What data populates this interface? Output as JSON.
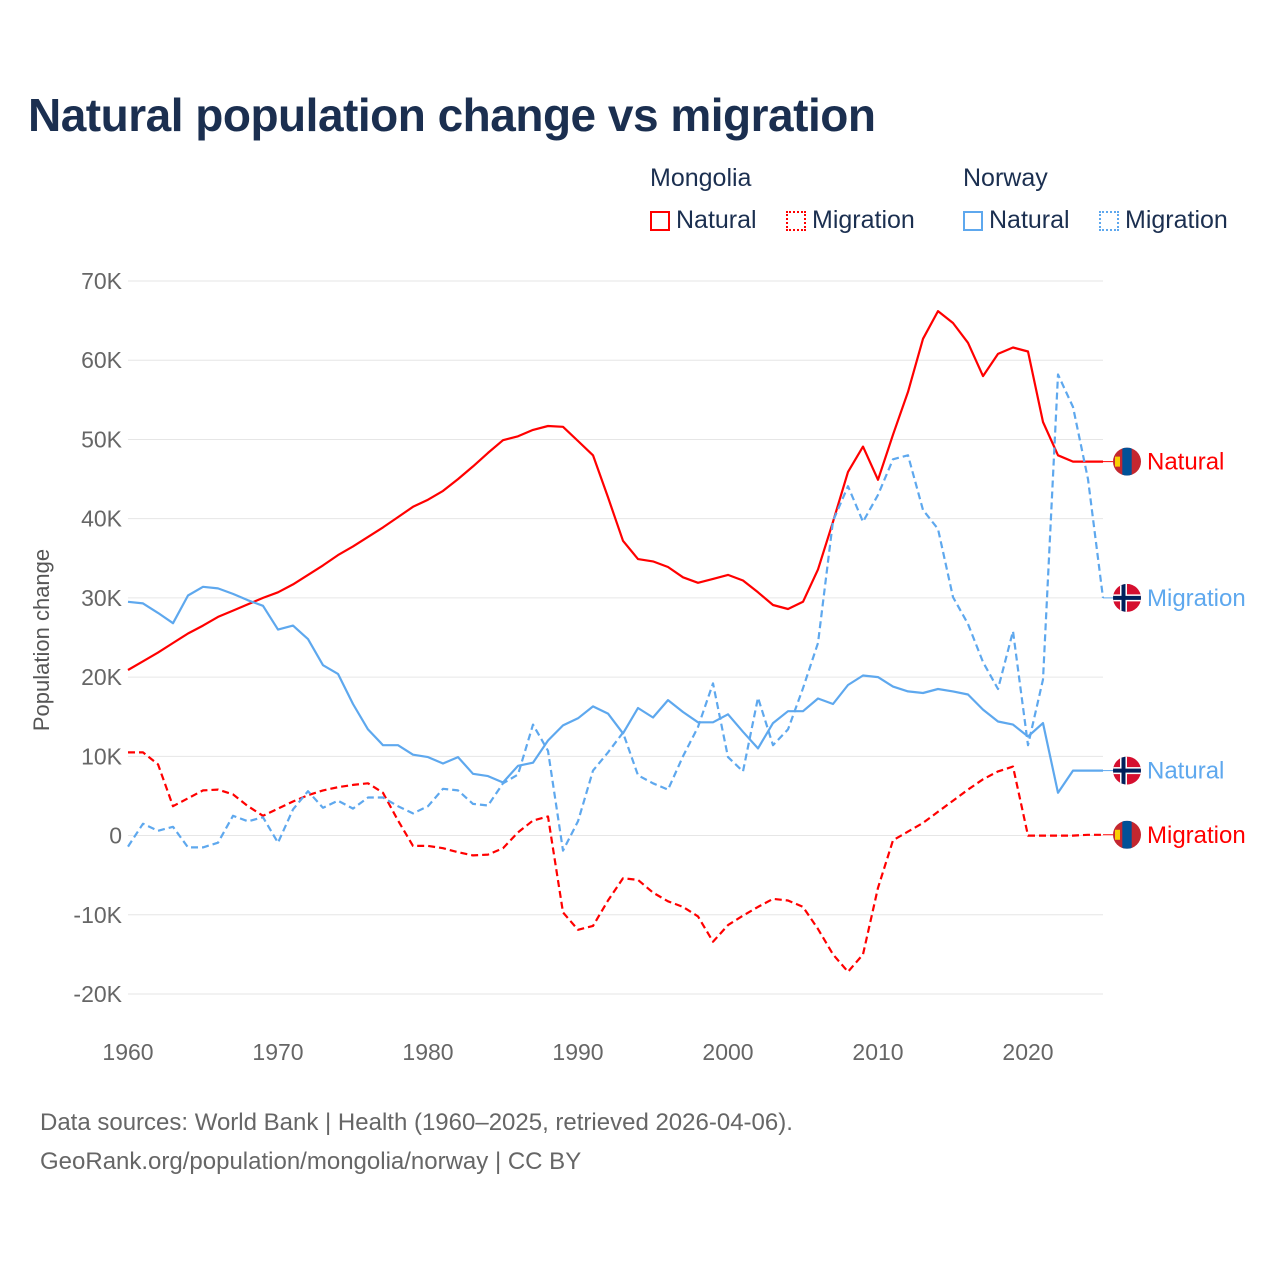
{
  "title": "Natural population change vs migration",
  "legend": {
    "groups": [
      {
        "name": "Mongolia",
        "items": [
          "Natural",
          "Migration"
        ]
      },
      {
        "name": "Norway",
        "items": [
          "Natural",
          "Migration"
        ]
      }
    ]
  },
  "footer": {
    "line1": "Data sources: World Bank | Health (1960–2025, retrieved 2026-04-06).",
    "line2": "GeoRank.org/population/mongolia/norway | CC BY"
  },
  "colors": {
    "mongolia": "#ff0000",
    "norway": "#5ea8ee",
    "grid": "#e6e6e6",
    "tick": "#666666"
  },
  "chart_data": {
    "type": "line",
    "title": "Natural population change vs migration",
    "xlabel": "",
    "ylabel": "Population change",
    "xlim": [
      1960,
      2025
    ],
    "ylim": [
      -20000,
      70000
    ],
    "grid": true,
    "x_ticks": [
      1960,
      1970,
      1980,
      1990,
      2000,
      2010,
      2020
    ],
    "x_tick_labels": [
      "1960",
      "1970",
      "1980",
      "1990",
      "2000",
      "2010",
      "2020"
    ],
    "y_ticks": [
      -20000,
      -10000,
      0,
      10000,
      20000,
      30000,
      40000,
      50000,
      60000,
      70000
    ],
    "y_tick_labels": [
      "-20K",
      "-10K",
      "0",
      "10K",
      "20K",
      "30K",
      "40K",
      "50K",
      "60K",
      "70K"
    ],
    "x_start": 1960,
    "series": [
      {
        "name": "Mongolia Natural",
        "country": "Mongolia",
        "label": "Natural",
        "color": "#ff0000",
        "dash": false,
        "flag": "mongolia-flag",
        "values": [
          20.9,
          22.0,
          23.1,
          24.3,
          25.5,
          26.5,
          27.6,
          28.4,
          29.2,
          30.0,
          30.7,
          31.7,
          32.9,
          34.1,
          35.4,
          36.5,
          37.7,
          38.9,
          40.2,
          41.5,
          42.4,
          43.5,
          45.0,
          46.6,
          48.3,
          49.9,
          50.4,
          51.2,
          51.7,
          51.6,
          49.8,
          48.0,
          42.7,
          37.2,
          34.9,
          34.6,
          33.9,
          32.6,
          31.9,
          32.4,
          32.9,
          32.2,
          30.7,
          29.1,
          28.6,
          29.5,
          33.6,
          39.6,
          45.9,
          49.1,
          44.9,
          50.6,
          56.0,
          62.7,
          66.2,
          64.7,
          62.2,
          58.0,
          60.8,
          61.6,
          61.1,
          52.2,
          48.0,
          47.2,
          47.2,
          47.2
        ]
      },
      {
        "name": "Mongolia Migration",
        "country": "Mongolia",
        "label": "Migration",
        "color": "#ff0000",
        "dash": true,
        "flag": "mongolia-flag",
        "values": [
          10.5,
          10.5,
          9.0,
          3.7,
          4.7,
          5.7,
          5.8,
          5.2,
          3.7,
          2.5,
          3.4,
          4.3,
          5.1,
          5.7,
          6.1,
          6.4,
          6.6,
          5.4,
          1.9,
          -1.3,
          -1.3,
          -1.6,
          -2.1,
          -2.5,
          -2.4,
          -1.6,
          0.4,
          1.9,
          2.4,
          -9.7,
          -11.9,
          -11.4,
          -8.2,
          -5.4,
          -5.6,
          -7.2,
          -8.3,
          -9.0,
          -10.2,
          -13.4,
          -11.3,
          -10.1,
          -9.0,
          -8.0,
          -8.2,
          -9.0,
          -11.8,
          -15.0,
          -17.2,
          -15.0,
          -6.6,
          -0.6,
          0.5,
          1.6,
          3.0,
          4.4,
          5.8,
          7.1,
          8.1,
          8.7,
          0,
          0,
          0,
          0,
          0.1,
          0.1
        ]
      },
      {
        "name": "Norway Natural",
        "country": "Norway",
        "label": "Natural",
        "color": "#5ea8ee",
        "dash": false,
        "flag": "norway-flag",
        "values": [
          29.5,
          29.3,
          28.1,
          26.8,
          30.3,
          31.4,
          31.2,
          30.5,
          29.7,
          29.0,
          26.0,
          26.5,
          24.8,
          21.5,
          20.4,
          16.6,
          13.4,
          11.4,
          11.4,
          10.2,
          9.9,
          9.1,
          9.9,
          7.8,
          7.5,
          6.7,
          8.8,
          9.2,
          12.0,
          13.9,
          14.8,
          16.3,
          15.4,
          12.9,
          16.1,
          14.9,
          17.1,
          15.6,
          14.3,
          14.3,
          15.3,
          13.1,
          11.0,
          14.2,
          15.7,
          15.7,
          17.3,
          16.6,
          19.0,
          20.2,
          20.0,
          18.8,
          18.2,
          18.0,
          18.5,
          18.2,
          17.8,
          15.9,
          14.4,
          14.0,
          12.5,
          14.2,
          5.4,
          8.2,
          8.2,
          8.2
        ]
      },
      {
        "name": "Norway Migration",
        "country": "Norway",
        "label": "Migration",
        "color": "#5ea8ee",
        "dash": true,
        "flag": "norway-flag",
        "values": [
          -1.4,
          1.5,
          0.6,
          1.1,
          -1.5,
          -1.5,
          -0.9,
          2.5,
          1.8,
          2.3,
          -0.9,
          3.3,
          5.6,
          3.5,
          4.4,
          3.4,
          4.8,
          4.8,
          3.7,
          2.8,
          3.7,
          5.9,
          5.7,
          4.0,
          3.8,
          6.6,
          7.7,
          14.0,
          10.7,
          -1.9,
          1.8,
          8.2,
          10.5,
          13.0,
          7.6,
          6.6,
          5.8,
          10.0,
          13.7,
          19.2,
          9.9,
          8.1,
          17.4,
          11.4,
          13.4,
          18.6,
          24.3,
          39.7,
          44.1,
          39.6,
          43.0,
          47.5,
          48.0,
          41.1,
          38.7,
          30.1,
          26.7,
          21.9,
          18.5,
          25.8,
          11.4,
          19.7,
          58.2,
          54.1,
          45.0,
          30.0
        ]
      }
    ],
    "values_unit": "thousands"
  }
}
